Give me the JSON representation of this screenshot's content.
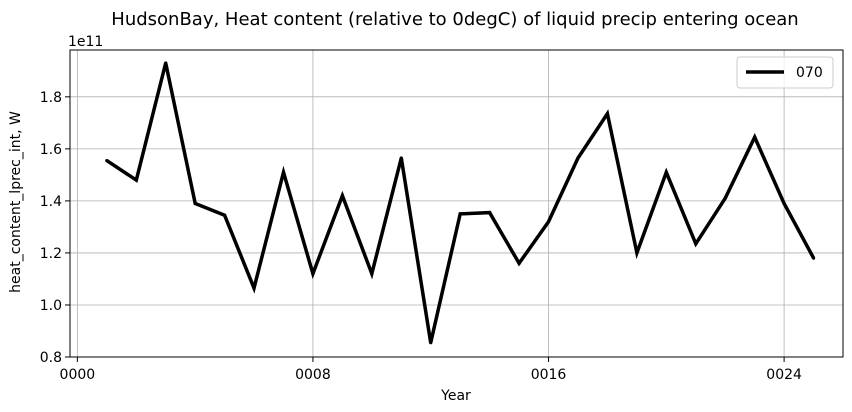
{
  "chart_data": {
    "type": "line",
    "title": "HudsonBay, Heat content (relative to 0degC) of liquid precip entering ocean",
    "xlabel": "Year",
    "ylabel": "heat_content_lprec_int, W",
    "y_offset_label": "1e11",
    "x_ticks": [
      {
        "value": 0,
        "label": "0000"
      },
      {
        "value": 8,
        "label": "0008"
      },
      {
        "value": 16,
        "label": "0016"
      },
      {
        "value": 24,
        "label": "0024"
      }
    ],
    "y_ticks": [
      {
        "value": 0.8,
        "label": "0.8"
      },
      {
        "value": 1.0,
        "label": "1.0"
      },
      {
        "value": 1.2,
        "label": "1.2"
      },
      {
        "value": 1.4,
        "label": "1.4"
      },
      {
        "value": 1.6,
        "label": "1.6"
      },
      {
        "value": 1.8,
        "label": "1.8"
      }
    ],
    "xlim": [
      -0.25,
      26.0
    ],
    "ylim": [
      0.8,
      1.98
    ],
    "grid": true,
    "legend_position": "top-right",
    "series": [
      {
        "name": "070",
        "color": "#000000",
        "x": [
          1,
          2,
          3,
          4,
          5,
          6,
          7,
          8,
          9,
          10,
          11,
          12,
          13,
          14,
          15,
          16,
          17,
          18,
          19,
          20,
          21,
          22,
          23,
          24,
          25
        ],
        "values": [
          1.555,
          1.48,
          1.93,
          1.39,
          1.345,
          1.065,
          1.51,
          1.12,
          1.42,
          1.12,
          1.565,
          0.855,
          1.35,
          1.355,
          1.16,
          1.32,
          1.565,
          1.735,
          1.2,
          1.51,
          1.235,
          1.41,
          1.645,
          1.39,
          1.18
        ]
      }
    ]
  }
}
